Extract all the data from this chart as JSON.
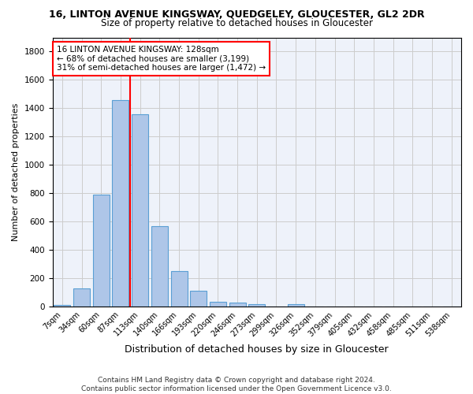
{
  "title": "16, LINTON AVENUE KINGSWAY, QUEDGELEY, GLOUCESTER, GL2 2DR",
  "subtitle": "Size of property relative to detached houses in Gloucester",
  "xlabel": "Distribution of detached houses by size in Gloucester",
  "ylabel": "Number of detached properties",
  "footer_line1": "Contains HM Land Registry data © Crown copyright and database right 2024.",
  "footer_line2": "Contains public sector information licensed under the Open Government Licence v3.0.",
  "bar_labels": [
    "7sqm",
    "34sqm",
    "60sqm",
    "87sqm",
    "113sqm",
    "140sqm",
    "166sqm",
    "193sqm",
    "220sqm",
    "246sqm",
    "273sqm",
    "299sqm",
    "326sqm",
    "352sqm",
    "379sqm",
    "405sqm",
    "432sqm",
    "458sqm",
    "485sqm",
    "511sqm",
    "538sqm"
  ],
  "bar_values": [
    10,
    130,
    790,
    1460,
    1360,
    565,
    250,
    110,
    35,
    28,
    18,
    0,
    15,
    0,
    0,
    0,
    0,
    0,
    0,
    0,
    0
  ],
  "bar_color": "#aec6e8",
  "bar_edgecolor": "#5a9fd4",
  "vline_x_index": 3.5,
  "annotation_text": "16 LINTON AVENUE KINGSWAY: 128sqm\n← 68% of detached houses are smaller (3,199)\n31% of semi-detached houses are larger (1,472) →",
  "annotation_box_color": "white",
  "annotation_box_edgecolor": "red",
  "vline_color": "red",
  "ylim": [
    0,
    1900
  ],
  "yticks": [
    0,
    200,
    400,
    600,
    800,
    1000,
    1200,
    1400,
    1600,
    1800
  ],
  "bg_color": "#eef2fa",
  "grid_color": "#cccccc",
  "title_fontsize": 9,
  "subtitle_fontsize": 8.5,
  "ylabel_fontsize": 8,
  "xlabel_fontsize": 9
}
